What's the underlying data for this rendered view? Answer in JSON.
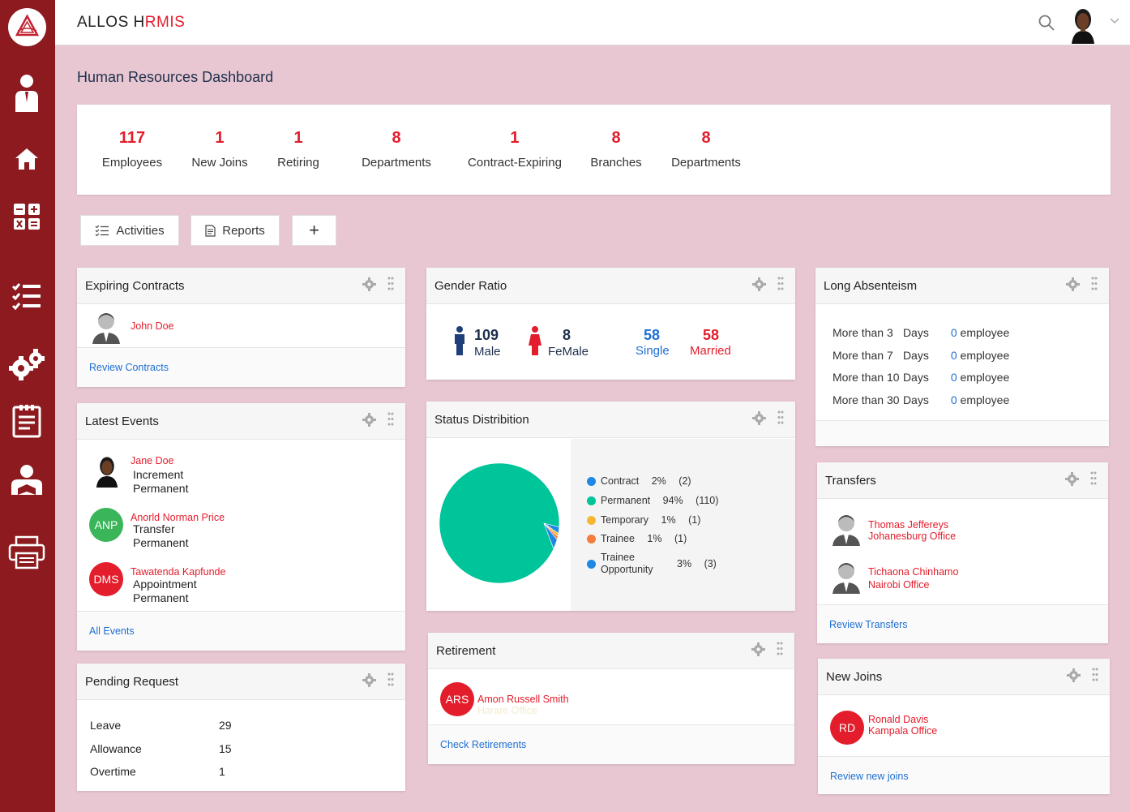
{
  "app": {
    "brand_part1": "ALLOS H",
    "brand_part2": "RMIS"
  },
  "page": {
    "title": "Human Resources Dashboard"
  },
  "stats": [
    {
      "value": "117",
      "label": "Employees"
    },
    {
      "value": "1",
      "label": "New Joins"
    },
    {
      "value": "1",
      "label": "Retiring"
    },
    {
      "value": "8",
      "label": "Departments"
    },
    {
      "value": "1",
      "label": "Contract-Expiring"
    },
    {
      "value": "8",
      "label": "Branches"
    },
    {
      "value": "8",
      "label": "Departments"
    }
  ],
  "toolbar": {
    "activities": "Activities",
    "reports": "Reports",
    "add": "+"
  },
  "expiring": {
    "title": "Expiring Contracts",
    "name": "John Doe",
    "link": "Review Contracts"
  },
  "events": {
    "title": "Latest Events",
    "link": "All Events",
    "items": [
      {
        "name": "Jane Doe",
        "type": "Increment",
        "status": "Permanent",
        "initials": ""
      },
      {
        "name": "Anorld Norman Price",
        "type": "Transfer",
        "status": "Permanent",
        "initials": "ANP"
      },
      {
        "name": "Tawatenda Kapfunde",
        "type": "Appointment",
        "status": "Permanent",
        "initials": "DMS"
      }
    ]
  },
  "pending": {
    "title": "Pending Request",
    "items": [
      {
        "label": "Leave",
        "value": "29"
      },
      {
        "label": "Allowance",
        "value": "15"
      },
      {
        "label": "Overtime",
        "value": "1"
      }
    ]
  },
  "gender": {
    "title": "Gender Ratio",
    "male_count": "109",
    "male_label": "Male",
    "female_count": "8",
    "female_label": "FeMale",
    "single_count": "58",
    "single_label": "Single",
    "married_count": "58",
    "married_label": "Married"
  },
  "status": {
    "title": "Status Distribition"
  },
  "chart_data": {
    "type": "pie",
    "title": "",
    "legend_position": "right",
    "slices": [
      {
        "label": "Contract",
        "percent": "2%",
        "count": "(2)",
        "value": 2,
        "color": "#1e88e5"
      },
      {
        "label": "Permanent",
        "percent": "94%",
        "count": "(110)",
        "value": 110,
        "color": "#00c49a"
      },
      {
        "label": "Temporary",
        "percent": "1%",
        "count": "(1)",
        "value": 1,
        "color": "#f7b733"
      },
      {
        "label": "Trainee",
        "percent": "1%",
        "count": "(1)",
        "value": 1,
        "color": "#f57c3a"
      },
      {
        "label": "Trainee Opportunity",
        "label_line1": "Trainee",
        "label_line2": "Opportunity",
        "percent": "3%",
        "count": "(3)",
        "value": 3,
        "color": "#1e88e5"
      }
    ]
  },
  "retirement": {
    "title": "Retirement",
    "initials": "ARS",
    "name": "Amon Russell Smith",
    "office": "Harare Office",
    "link": "Check Retirements"
  },
  "absenteeism": {
    "title": "Long Absenteism",
    "prefix": "More than",
    "unit": "Days",
    "rows": [
      {
        "days": "3",
        "count": "0",
        "suffix": "employee"
      },
      {
        "days": "7",
        "count": "0",
        "suffix": "employee"
      },
      {
        "days": "10",
        "count": "0",
        "suffix": "employee"
      },
      {
        "days": "30",
        "count": "0",
        "suffix": "employee"
      }
    ]
  },
  "transfers": {
    "title": "Transfers",
    "link": "Review Transfers",
    "items": [
      {
        "name": "Thomas Jeffereys",
        "office": "Johanesburg Office"
      },
      {
        "name": "Tichaona Chinhamo",
        "office": "Nairobi Office"
      }
    ]
  },
  "newjoins": {
    "title": "New Joins",
    "initials": "RD",
    "name": "Ronald Davis",
    "office": "Kampala Office",
    "link": "Review new joins"
  }
}
